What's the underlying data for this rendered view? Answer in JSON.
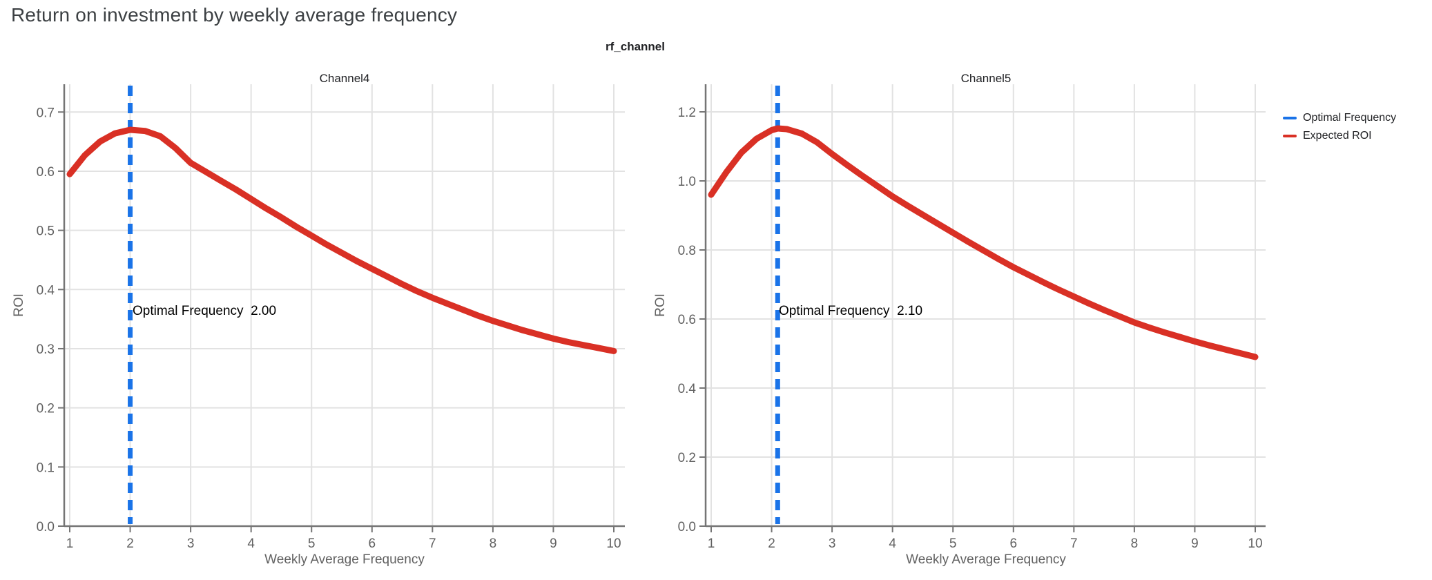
{
  "header": {
    "title": "Return on investment by weekly average frequency"
  },
  "facet_label": "rf_channel",
  "colors": {
    "accent_blue": "#1a73e8",
    "accent_red": "#d93025",
    "grid": "#e2e2e2",
    "axis": "#757575",
    "tick_text": "#616161",
    "title_text": "#3c4043"
  },
  "legend": {
    "items": [
      {
        "label": "Optimal Frequency",
        "color": "#1a73e8"
      },
      {
        "label": "Expected ROI",
        "color": "#d93025"
      }
    ]
  },
  "chart_data": [
    {
      "type": "line",
      "title": "Channel4",
      "xlabel": "Weekly Average Frequency",
      "ylabel": "ROI",
      "xlim": [
        0.9,
        10.2
      ],
      "ylim": [
        0,
        0.747
      ],
      "grid": true,
      "xticks": [
        1,
        2,
        3,
        4,
        5,
        6,
        7,
        8,
        9,
        10
      ],
      "yticks": [
        0.0,
        0.1,
        0.2,
        0.3,
        0.4,
        0.5,
        0.6,
        0.7
      ],
      "ytick_labels": [
        "0.0",
        "0.1",
        "0.2",
        "0.3",
        "0.4",
        "0.5",
        "0.6",
        "0.7"
      ],
      "optimal_frequency": 2.0,
      "annotation": "Optimal Frequency  2.00",
      "vline": {
        "name": "Optimal Frequency",
        "x": 2.0,
        "style": "dashed"
      },
      "series": [
        {
          "name": "Expected ROI",
          "x": [
            1,
            1.25,
            1.5,
            1.75,
            2,
            2.25,
            2.5,
            2.75,
            3,
            3.25,
            3.5,
            3.75,
            4,
            4.25,
            4.5,
            4.75,
            5,
            5.25,
            5.5,
            5.75,
            6,
            6.25,
            6.5,
            6.75,
            7,
            7.25,
            7.5,
            7.75,
            8,
            8.25,
            8.5,
            8.75,
            9,
            9.25,
            9.5,
            9.75,
            10
          ],
          "y": [
            0.595,
            0.627,
            0.65,
            0.664,
            0.67,
            0.668,
            0.659,
            0.639,
            0.614,
            0.599,
            0.584,
            0.569,
            0.553,
            0.537,
            0.522,
            0.506,
            0.491,
            0.476,
            0.462,
            0.448,
            0.435,
            0.422,
            0.409,
            0.397,
            0.386,
            0.376,
            0.366,
            0.356,
            0.347,
            0.339,
            0.331,
            0.324,
            0.317,
            0.311,
            0.306,
            0.301,
            0.296
          ]
        }
      ]
    },
    {
      "type": "line",
      "title": "Channel5",
      "xlabel": "Weekly Average Frequency",
      "ylabel": "ROI",
      "xlim": [
        0.9,
        10.2
      ],
      "ylim": [
        0,
        1.28
      ],
      "grid": true,
      "xticks": [
        1,
        2,
        3,
        4,
        5,
        6,
        7,
        8,
        9,
        10
      ],
      "yticks": [
        0.0,
        0.2,
        0.4,
        0.6,
        0.8,
        1.0,
        1.2
      ],
      "ytick_labels": [
        "0.0",
        "0.2",
        "0.4",
        "0.6",
        "0.8",
        "1.0",
        "1.2"
      ],
      "optimal_frequency": 2.1,
      "annotation": "Optimal Frequency  2.10",
      "vline": {
        "name": "Optimal Frequency",
        "x": 2.1,
        "style": "dashed"
      },
      "series": [
        {
          "name": "Expected ROI",
          "x": [
            1,
            1.25,
            1.5,
            1.75,
            2,
            2.1,
            2.25,
            2.5,
            2.75,
            3,
            3.25,
            3.5,
            3.75,
            4,
            4.25,
            4.5,
            4.75,
            5,
            5.25,
            5.5,
            5.75,
            6,
            6.25,
            6.5,
            6.75,
            7,
            7.25,
            7.5,
            7.75,
            8,
            8.25,
            8.5,
            8.75,
            9,
            9.25,
            9.5,
            9.75,
            10
          ],
          "y": [
            0.96,
            1.025,
            1.082,
            1.122,
            1.147,
            1.152,
            1.15,
            1.137,
            1.112,
            1.078,
            1.046,
            1.015,
            0.985,
            0.955,
            0.928,
            0.902,
            0.876,
            0.85,
            0.824,
            0.799,
            0.774,
            0.75,
            0.728,
            0.706,
            0.685,
            0.665,
            0.645,
            0.626,
            0.608,
            0.59,
            0.575,
            0.561,
            0.548,
            0.535,
            0.523,
            0.512,
            0.501,
            0.49
          ]
        }
      ]
    }
  ]
}
